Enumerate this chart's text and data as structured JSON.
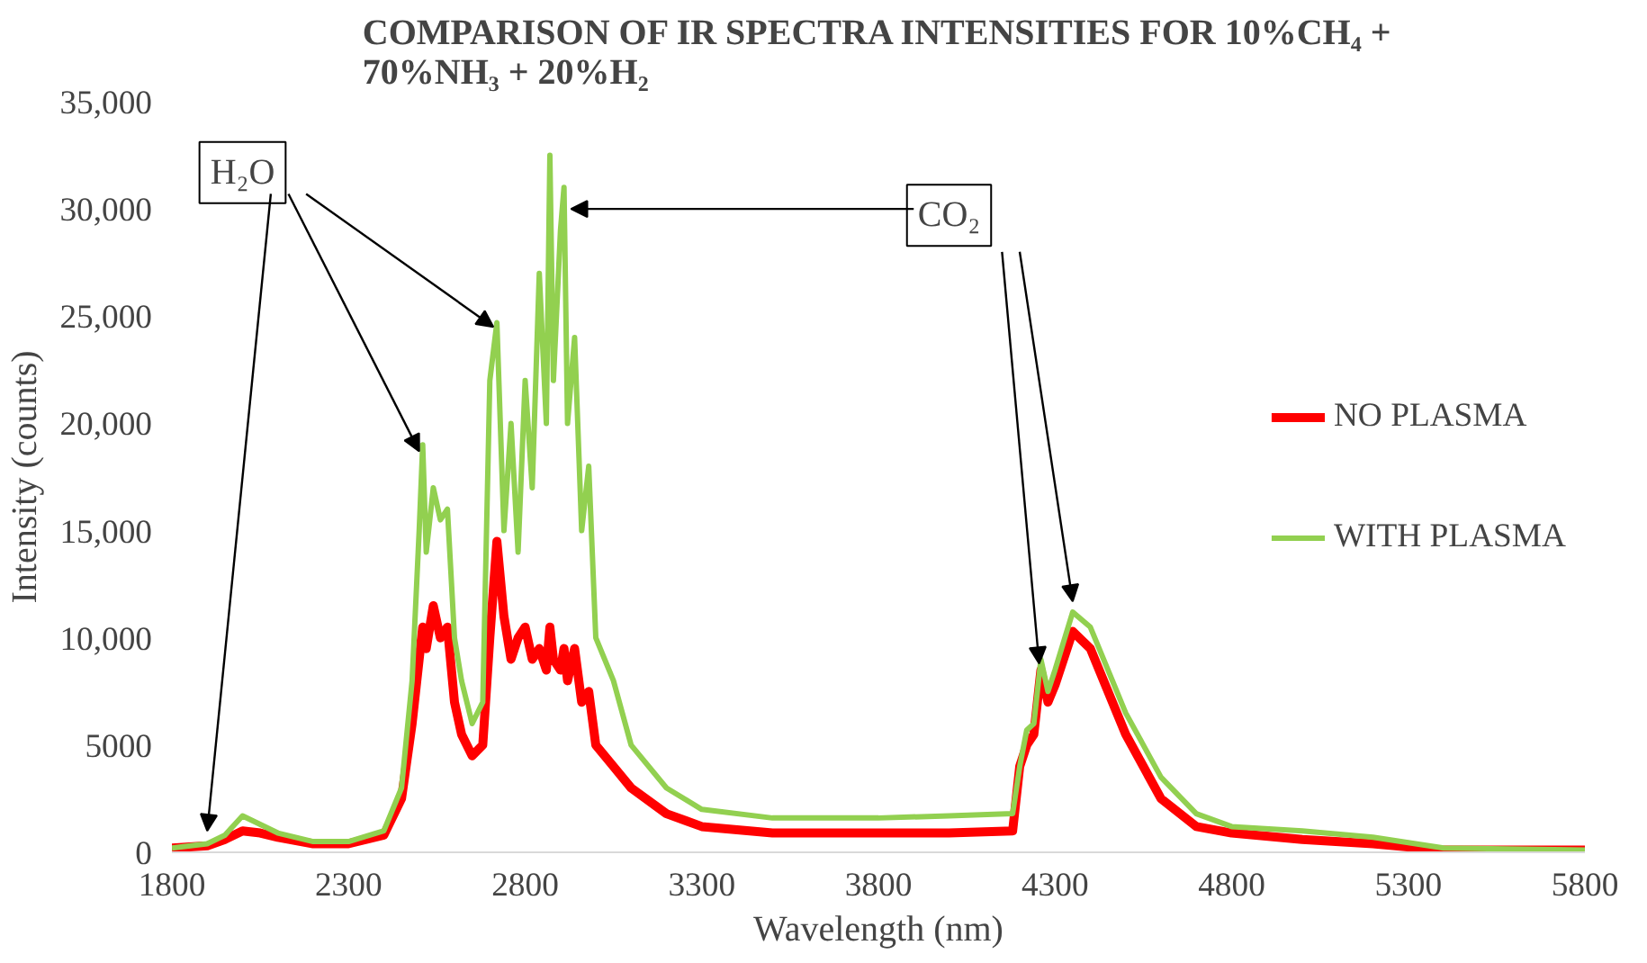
{
  "chart_data": {
    "type": "line",
    "title": "COMPARISON OF IR SPECTRA INTENSITIES FOR 10%CH₄ + 70%NH₃ + 20%H₂",
    "xlabel": "Wavelength (nm)",
    "ylabel": "Intensity (counts)",
    "x": [
      1800,
      1900,
      1950,
      2000,
      2050,
      2100,
      2200,
      2300,
      2400,
      2450,
      2480,
      2500,
      2510,
      2520,
      2540,
      2560,
      2580,
      2600,
      2620,
      2650,
      2680,
      2700,
      2720,
      2740,
      2760,
      2780,
      2800,
      2820,
      2840,
      2860,
      2870,
      2880,
      2900,
      2910,
      2920,
      2940,
      2960,
      2980,
      3000,
      3050,
      3100,
      3200,
      3300,
      3500,
      3800,
      4000,
      4180,
      4200,
      4220,
      4240,
      4260,
      4280,
      4300,
      4350,
      4400,
      4500,
      4600,
      4700,
      4800,
      5000,
      5200,
      5400,
      5800
    ],
    "series": [
      {
        "name": "NO PLASMA",
        "color": "#ff0000",
        "values": [
          200,
          300,
          600,
          1000,
          900,
          700,
          400,
          400,
          800,
          2500,
          6000,
          9000,
          10500,
          9500,
          11500,
          10000,
          10500,
          7000,
          5500,
          4500,
          5000,
          10000,
          14500,
          11000,
          9000,
          10000,
          10500,
          9000,
          9500,
          8500,
          10500,
          9000,
          8500,
          9500,
          8000,
          9500,
          7000,
          7500,
          5000,
          4000,
          3000,
          1800,
          1200,
          900,
          900,
          900,
          1000,
          4000,
          5000,
          5500,
          8500,
          7000,
          7800,
          10300,
          9500,
          5500,
          2500,
          1200,
          900,
          600,
          400,
          100,
          100
        ]
      },
      {
        "name": "WITH PLASMA",
        "color": "#92d050",
        "values": [
          200,
          400,
          800,
          1700,
          1300,
          900,
          500,
          500,
          1000,
          3000,
          8000,
          15000,
          19000,
          14000,
          17000,
          15500,
          16000,
          10000,
          8000,
          6000,
          7000,
          22000,
          24700,
          15000,
          20000,
          14000,
          22000,
          17000,
          27000,
          20000,
          32500,
          22000,
          29000,
          31000,
          20000,
          24000,
          15000,
          18000,
          10000,
          8000,
          5000,
          3000,
          2000,
          1600,
          1600,
          1700,
          1800,
          4000,
          5700,
          6000,
          9000,
          7500,
          8500,
          11200,
          10500,
          6500,
          3500,
          1800,
          1200,
          1000,
          700,
          200,
          100
        ]
      }
    ],
    "xlim": [
      1800,
      5800
    ],
    "xticks": [
      1800,
      2300,
      2800,
      3300,
      3800,
      4300,
      4800,
      5300,
      5800
    ],
    "ylim": [
      0,
      35000
    ],
    "yticks": [
      0,
      5000,
      {
        "value": 10000,
        "label": "10,000"
      },
      {
        "value": 15000,
        "label": "15,000"
      },
      {
        "value": 20000,
        "label": "20,000"
      },
      {
        "value": 25000,
        "label": "25,000"
      },
      {
        "value": 30000,
        "label": "30,000"
      },
      {
        "value": 35000,
        "label": "35,000"
      }
    ],
    "annotations": [
      {
        "text": "H₂O",
        "x": 2710,
        "y": 24500
      },
      {
        "text": "CO₂",
        "x": 4350,
        "y": 11700
      }
    ],
    "legend": "right",
    "grid": false,
    "line_style": "solid"
  }
}
